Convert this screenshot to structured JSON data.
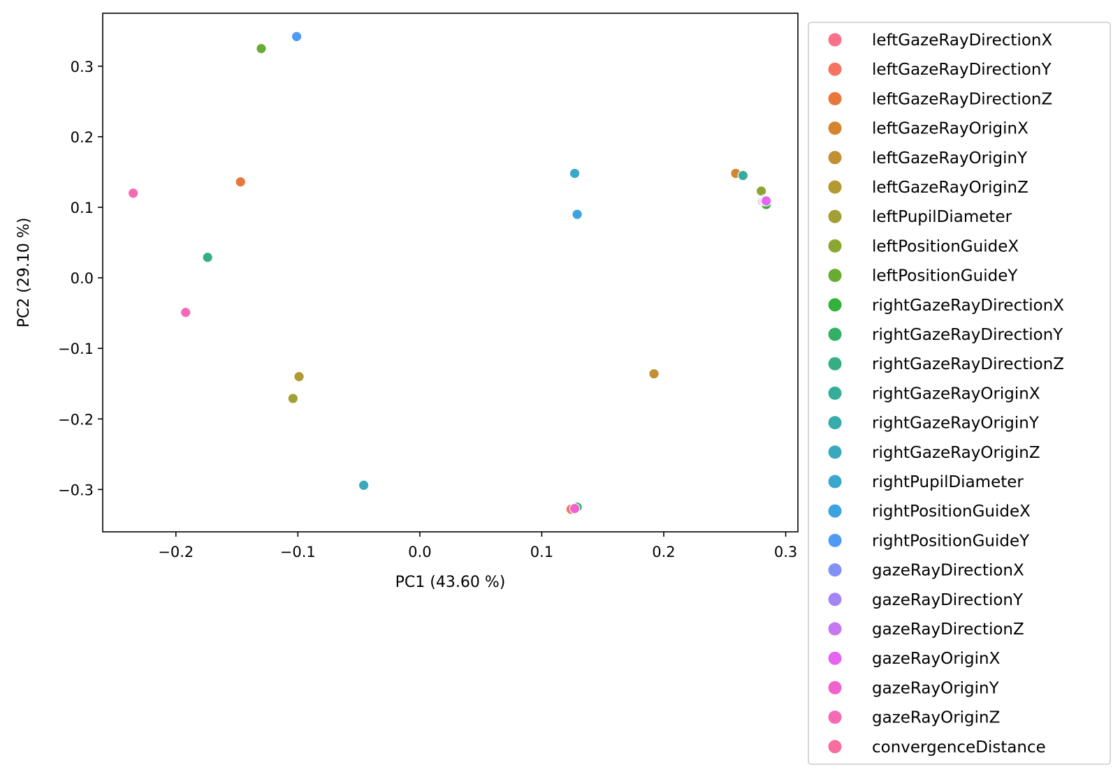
{
  "chart_data": {
    "type": "scatter",
    "title": "",
    "xlabel": "PC1 (43.60 %)",
    "ylabel": "PC2 (29.10 %)",
    "xlim": [
      -0.26,
      0.31
    ],
    "ylim": [
      -0.36,
      0.375
    ],
    "xticks": [
      {
        "value": -0.2,
        "label": "−0.2"
      },
      {
        "value": -0.1,
        "label": "−0.1"
      },
      {
        "value": 0.0,
        "label": "0.0"
      },
      {
        "value": 0.1,
        "label": "0.1"
      },
      {
        "value": 0.2,
        "label": "0.2"
      },
      {
        "value": 0.3,
        "label": "0.3"
      }
    ],
    "yticks": [
      {
        "value": -0.3,
        "label": "−0.3"
      },
      {
        "value": -0.2,
        "label": "−0.2"
      },
      {
        "value": -0.1,
        "label": "−0.1"
      },
      {
        "value": 0.0,
        "label": "0.0"
      },
      {
        "value": 0.1,
        "label": "0.1"
      },
      {
        "value": 0.2,
        "label": "0.2"
      },
      {
        "value": 0.3,
        "label": "0.3"
      }
    ],
    "grid": false,
    "legend_position": "outside-right",
    "series": [
      {
        "name": "leftGazeRayDirectionX",
        "color": "#f77189",
        "points": [
          [
            0.281,
            0.109
          ]
        ]
      },
      {
        "name": "leftGazeRayDirectionY",
        "color": "#f67361",
        "points": [
          [
            0.124,
            -0.328
          ]
        ]
      },
      {
        "name": "leftGazeRayDirectionZ",
        "color": "#e8773d",
        "points": [
          [
            -0.147,
            0.136
          ]
        ]
      },
      {
        "name": "leftGazeRayOriginX",
        "color": "#d6842e",
        "points": [
          [
            0.259,
            0.148
          ]
        ]
      },
      {
        "name": "leftGazeRayOriginY",
        "color": "#c28f32",
        "points": [
          [
            0.192,
            -0.136
          ]
        ]
      },
      {
        "name": "leftGazeRayOriginZ",
        "color": "#b29a32",
        "points": [
          [
            -0.099,
            -0.14
          ]
        ]
      },
      {
        "name": "leftPupilDiameter",
        "color": "#a1a034",
        "points": [
          [
            -0.104,
            -0.171
          ]
        ]
      },
      {
        "name": "leftPositionGuideX",
        "color": "#8ca631",
        "points": [
          [
            0.28,
            0.123
          ]
        ]
      },
      {
        "name": "leftPositionGuideY",
        "color": "#6aac31",
        "points": [
          [
            -0.13,
            0.325
          ]
        ]
      },
      {
        "name": "rightGazeRayDirectionX",
        "color": "#34b13a",
        "points": [
          [
            0.284,
            0.104
          ]
        ]
      },
      {
        "name": "rightGazeRayDirectionY",
        "color": "#33b066",
        "points": [
          [
            0.129,
            -0.325
          ]
        ]
      },
      {
        "name": "rightGazeRayDirectionZ",
        "color": "#35ae84",
        "points": [
          [
            -0.174,
            0.029
          ]
        ]
      },
      {
        "name": "rightGazeRayOriginX",
        "color": "#36ad99",
        "points": [
          [
            0.265,
            0.145
          ]
        ]
      },
      {
        "name": "rightGazeRayOriginY",
        "color": "#37acaa",
        "points": [
          [
            0.282,
            0.11
          ]
        ]
      },
      {
        "name": "rightGazeRayOriginZ",
        "color": "#38aabb",
        "points": [
          [
            -0.046,
            -0.294
          ]
        ]
      },
      {
        "name": "rightPupilDiameter",
        "color": "#3aa7cd",
        "points": [
          [
            0.127,
            0.148
          ]
        ]
      },
      {
        "name": "rightPositionGuideX",
        "color": "#3ba3e1",
        "points": [
          [
            0.129,
            0.09
          ]
        ]
      },
      {
        "name": "rightPositionGuideY",
        "color": "#4f9bf4",
        "points": [
          [
            -0.101,
            0.342
          ]
        ]
      },
      {
        "name": "gazeRayDirectionX",
        "color": "#8390f4",
        "points": [
          [
            0.283,
            0.111
          ]
        ]
      },
      {
        "name": "gazeRayDirectionY",
        "color": "#a386f4",
        "points": [
          [
            0.283,
            0.109
          ]
        ]
      },
      {
        "name": "gazeRayDirectionZ",
        "color": "#c479f0",
        "points": [
          [
            0.284,
            0.11
          ]
        ]
      },
      {
        "name": "gazeRayOriginX",
        "color": "#e565f0",
        "points": [
          [
            0.284,
            0.109
          ]
        ]
      },
      {
        "name": "gazeRayOriginY",
        "color": "#f063cf",
        "points": [
          [
            0.127,
            -0.327
          ]
        ]
      },
      {
        "name": "gazeRayOriginZ",
        "color": "#f46bb5",
        "points": [
          [
            -0.235,
            0.12
          ],
          [
            -0.192,
            -0.049
          ]
        ]
      },
      {
        "name": "convergenceDistance",
        "color": "#f56e9f",
        "points": []
      }
    ]
  }
}
